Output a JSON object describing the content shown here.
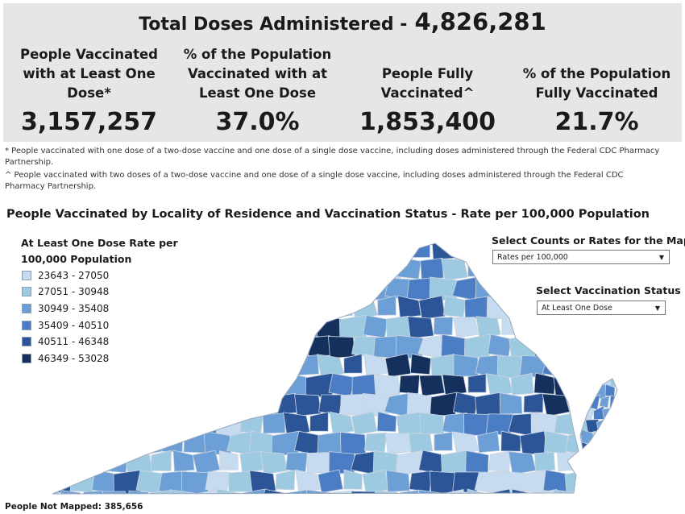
{
  "summary": {
    "total_label": "Total Doses Administered -",
    "total_value": "4,826,281",
    "kpis": [
      {
        "label": "People Vaccinated with at Least One Dose*",
        "value": "3,157,257"
      },
      {
        "label": "% of the Population Vaccinated with at Least One Dose",
        "value": "37.0%"
      },
      {
        "label": "People Fully Vaccinated^",
        "value": "1,853,400"
      },
      {
        "label": "% of the Population Fully Vaccinated",
        "value": "21.7%"
      }
    ]
  },
  "footnotes": [
    "* People vaccinated with one dose of a two-dose vaccine and one dose of a single dose vaccine, including doses administered through the Federal CDC Pharmacy Partnership.",
    "^ People vaccinated with two doses of a two-dose vaccine and one dose of a single dose vaccine, including doses administered through the Federal CDC Pharmacy Partnership."
  ],
  "map": {
    "title": "People Vaccinated by Locality of Residence and Vaccination Status - Rate per 100,000 Population",
    "legend_title": "At Least One Dose Rate per 100,000 Population",
    "legend": [
      {
        "label": "23643 - 27050",
        "color": "#c6dbef"
      },
      {
        "label": "27051 - 30948",
        "color": "#9ecae1"
      },
      {
        "label": "30949 - 35408",
        "color": "#6b9fd6"
      },
      {
        "label": "35409 - 40510",
        "color": "#4a7dc4"
      },
      {
        "label": "40511 - 46348",
        "color": "#2b5597"
      },
      {
        "label": "46349 - 53028",
        "color": "#16305e"
      }
    ],
    "not_mapped": "People Not Mapped: 385,656"
  },
  "controls": {
    "counts_label": "Select Counts or Rates for the Map",
    "counts_value": "Rates per 100,000",
    "status_label": "Select Vaccination Status",
    "status_value": "At Least One Dose"
  }
}
